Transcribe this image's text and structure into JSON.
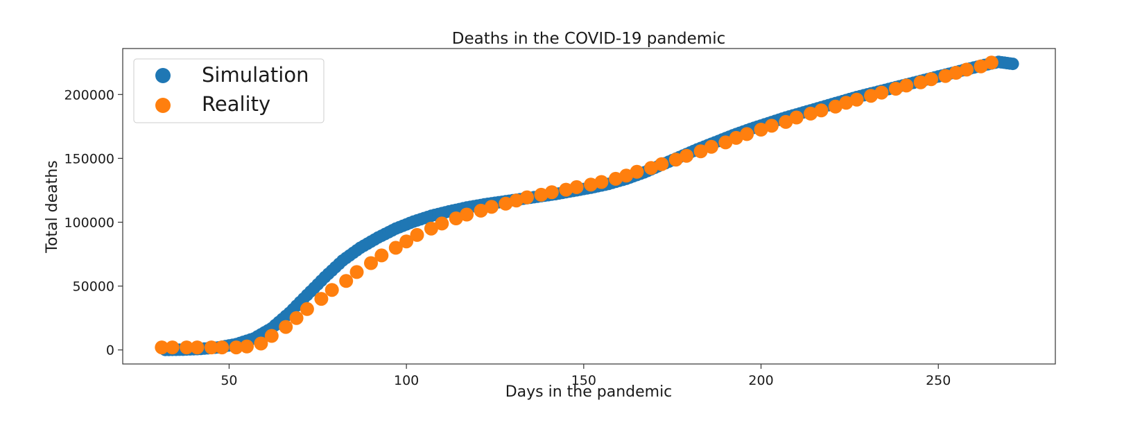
{
  "chart_data": {
    "type": "scatter",
    "title": "Deaths in the COVID-19 pandemic",
    "xlabel": "Days in the pandemic",
    "ylabel": "Total deaths",
    "xlim": [
      20,
      283
    ],
    "ylim": [
      -11000,
      236000
    ],
    "xticks": [
      50,
      100,
      150,
      200,
      250
    ],
    "yticks": [
      0,
      50000,
      100000,
      150000,
      200000
    ],
    "grid": false,
    "legend_position": "top-left",
    "series": [
      {
        "name": "Simulation",
        "color": "#1f77b4",
        "x": [
          32,
          37,
          42,
          47,
          52,
          57,
          62,
          67,
          72,
          77,
          82,
          87,
          92,
          97,
          102,
          107,
          112,
          117,
          122,
          127,
          132,
          137,
          142,
          147,
          152,
          157,
          162,
          167,
          172,
          177,
          182,
          187,
          192,
          197,
          202,
          207,
          212,
          217,
          222,
          227,
          232,
          237,
          242,
          247,
          252,
          257,
          262,
          267,
          271
        ],
        "y": [
          0,
          200,
          800,
          2000,
          4500,
          9000,
          17000,
          29000,
          43000,
          57000,
          70000,
          80000,
          88000,
          95000,
          100500,
          105000,
          108500,
          111500,
          114000,
          116000,
          118000,
          120000,
          122000,
          124500,
          127000,
          130000,
          134000,
          139000,
          145000,
          151000,
          157000,
          162500,
          168000,
          173000,
          177500,
          182000,
          186000,
          190000,
          194000,
          198000,
          201500,
          205000,
          208500,
          212000,
          215500,
          219000,
          222500,
          225500,
          224000
        ]
      },
      {
        "name": "Reality",
        "color": "#ff7f0e",
        "x": [
          31,
          34,
          38,
          41,
          45,
          48,
          52,
          55,
          59,
          62,
          66,
          69,
          72,
          76,
          79,
          83,
          86,
          90,
          93,
          97,
          100,
          103,
          107,
          110,
          114,
          117,
          121,
          124,
          128,
          131,
          134,
          138,
          141,
          145,
          148,
          152,
          155,
          159,
          162,
          165,
          169,
          172,
          176,
          179,
          183,
          186,
          190,
          193,
          196,
          200,
          203,
          207,
          210,
          214,
          217,
          221,
          224,
          227,
          231,
          234,
          238,
          241,
          245,
          248,
          252,
          255,
          258,
          262,
          265
        ],
        "y": [
          2000,
          2000,
          2000,
          2000,
          2000,
          2000,
          2000,
          2700,
          5000,
          11000,
          18000,
          25000,
          32000,
          40000,
          47000,
          54000,
          61000,
          68000,
          74000,
          80000,
          85000,
          90000,
          95000,
          99000,
          103000,
          106000,
          109000,
          112000,
          114500,
          117000,
          119500,
          121500,
          123500,
          125500,
          127500,
          129500,
          131500,
          134000,
          136500,
          139500,
          142500,
          145500,
          149000,
          152000,
          155500,
          159000,
          162500,
          166000,
          169000,
          172500,
          175500,
          178500,
          182000,
          185000,
          187500,
          190500,
          193500,
          196000,
          199000,
          201500,
          204500,
          207000,
          209500,
          212000,
          214500,
          217000,
          219500,
          222000,
          225000
        ]
      }
    ]
  }
}
